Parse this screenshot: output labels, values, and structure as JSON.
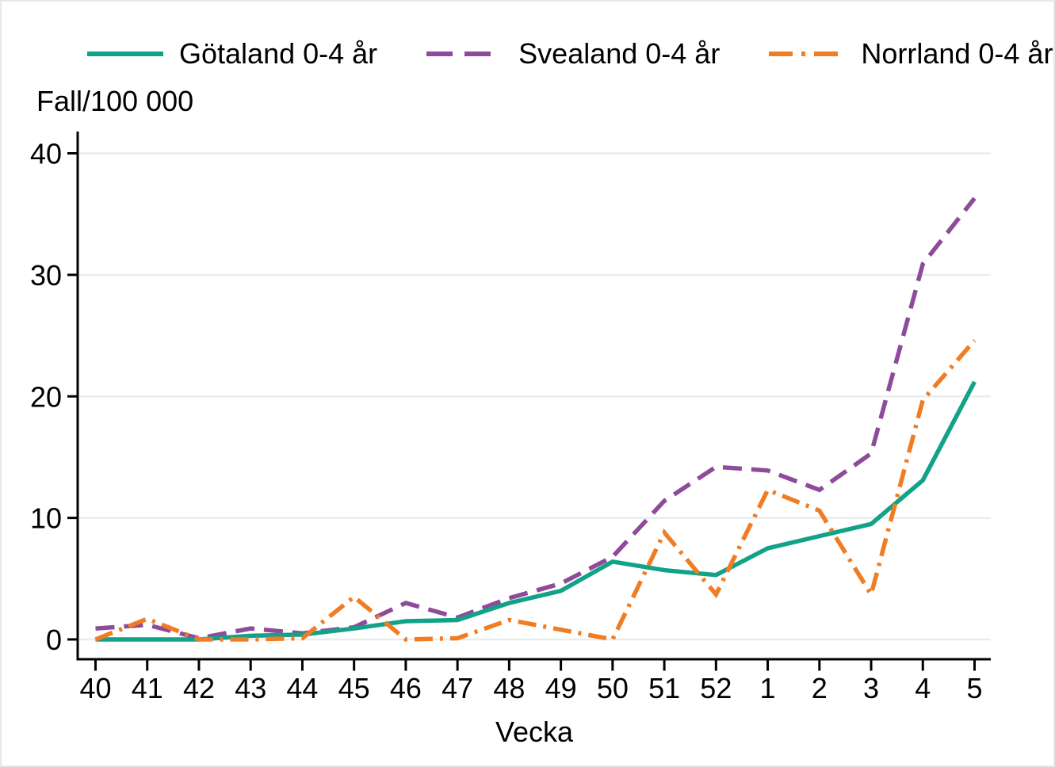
{
  "figure_title": "",
  "axis": {
    "y_title": "Fall/100 000",
    "x_title": "Vecka"
  },
  "colors": {
    "background": "#ffffff",
    "frame": "#e4e9ea",
    "grid": "#e7eef0",
    "axis": "#000000",
    "text": "#000000"
  },
  "chart_data": {
    "type": "line",
    "title": "",
    "xlabel": "Vecka",
    "ylabel": "Fall/100 000",
    "categories": [
      "40",
      "41",
      "42",
      "43",
      "44",
      "45",
      "46",
      "47",
      "48",
      "49",
      "50",
      "51",
      "52",
      "1",
      "2",
      "3",
      "4",
      "5"
    ],
    "yticks": [
      0,
      10,
      20,
      30,
      40
    ],
    "ylim": [
      0,
      40
    ],
    "grid": "horizontal",
    "legend_position": "top",
    "series": [
      {
        "name": "Götaland 0-4 år",
        "color": "#12a287",
        "pattern": "solid",
        "values": [
          0,
          0,
          0,
          0.3,
          0.4,
          0.9,
          1.5,
          1.6,
          3.0,
          4.0,
          6.4,
          5.7,
          5.3,
          7.5,
          8.5,
          9.5,
          13.1,
          21.2
        ]
      },
      {
        "name": "Svealand 0-4 år",
        "color": "#8f4b9b",
        "pattern": "dash",
        "values": [
          0.9,
          1.2,
          0.1,
          0.9,
          0.5,
          1.0,
          3.0,
          1.8,
          3.4,
          4.6,
          6.8,
          11.4,
          14.2,
          13.9,
          12.3,
          15.3,
          30.9,
          36.3
        ]
      },
      {
        "name": "Norrland 0-4 år",
        "color": "#f07d23",
        "pattern": "dash-dot",
        "values": [
          0,
          1.7,
          0,
          0,
          0.1,
          3.5,
          0,
          0.1,
          1.6,
          0.8,
          0,
          8.8,
          3.7,
          12.3,
          10.6,
          3.7,
          19.7,
          24.6
        ]
      }
    ]
  }
}
